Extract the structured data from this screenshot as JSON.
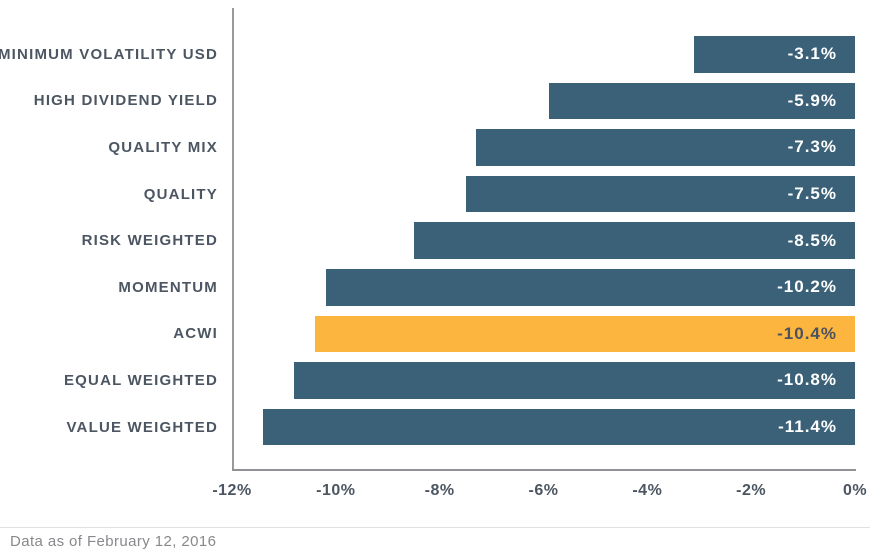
{
  "chart_data": {
    "type": "bar",
    "orientation": "horizontal",
    "categories": [
      "MINIMUM VOLATILITY USD",
      "HIGH DIVIDEND YIELD",
      "QUALITY MIX",
      "QUALITY",
      "RISK WEIGHTED",
      "MOMENTUM",
      "ACWI",
      "EQUAL WEIGHTED",
      "VALUE WEIGHTED"
    ],
    "values": [
      -3.1,
      -5.9,
      -7.3,
      -7.5,
      -8.5,
      -10.2,
      -10.4,
      -10.8,
      -11.4
    ],
    "value_labels": [
      "-3.1%",
      "-5.9%",
      "-7.3%",
      "-7.5%",
      "-8.5%",
      "-10.2%",
      "-10.4%",
      "-10.8%",
      "-11.4%"
    ],
    "highlight_index": 6,
    "highlight_category": "ACWI",
    "title": "",
    "xlabel": "",
    "ylabel": "",
    "xlim": [
      -12,
      0
    ],
    "x_ticks": [
      "-12%",
      "-10%",
      "-8%",
      "-6%",
      "-4%",
      "-2%",
      "0%"
    ],
    "x_tick_values": [
      -12,
      -10,
      -8,
      -6,
      -4,
      -2,
      0
    ],
    "grid": false,
    "legend": false,
    "colors": {
      "bar": "#3a6178",
      "highlight_bar": "#fcb53e",
      "bar_value_text": "#ffffff",
      "highlight_value_text": "#4c5260",
      "category_text": "#4c5662",
      "tick_text": "#4c5662",
      "axis_line": "#97999d"
    }
  },
  "footer": {
    "note": "Data as of February 12, 2016"
  }
}
